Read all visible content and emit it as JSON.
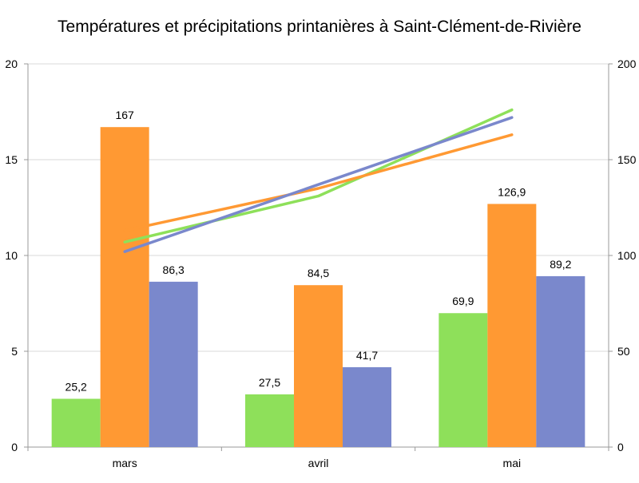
{
  "chart_data": {
    "type": "bar",
    "title": "Températures et précipitations printanières à Saint-Clément-de-Rivière",
    "categories": [
      "mars",
      "avril",
      "mai"
    ],
    "y_left": {
      "min": 0,
      "max": 20,
      "ticks": [
        "0",
        "5",
        "10",
        "15",
        "20"
      ]
    },
    "y_right": {
      "min": 0,
      "max": 200,
      "ticks": [
        "0",
        "50",
        "100",
        "150",
        "200"
      ]
    },
    "bar_axis": "right",
    "series": [
      {
        "color": "#8ee05a",
        "values": [
          25.2,
          27.5,
          69.9
        ],
        "labels": [
          "25,2",
          "27,5",
          "69,9"
        ]
      },
      {
        "color": "#ff9933",
        "values": [
          167,
          84.5,
          126.9
        ],
        "labels": [
          "167",
          "84,5",
          "126,9"
        ]
      },
      {
        "color": "#7a88cc",
        "values": [
          86.3,
          41.7,
          89.2
        ],
        "labels": [
          "86,3",
          "41,7",
          "89,2"
        ]
      }
    ],
    "line_axis": "left",
    "lines": [
      {
        "color": "#8ee05a",
        "values": [
          10.7,
          13.1,
          17.6
        ]
      },
      {
        "color": "#ff9933",
        "values": [
          11.3,
          13.5,
          16.3
        ]
      },
      {
        "color": "#7a88cc",
        "values": [
          10.2,
          13.7,
          17.2
        ]
      }
    ],
    "grid": "horizontal"
  }
}
